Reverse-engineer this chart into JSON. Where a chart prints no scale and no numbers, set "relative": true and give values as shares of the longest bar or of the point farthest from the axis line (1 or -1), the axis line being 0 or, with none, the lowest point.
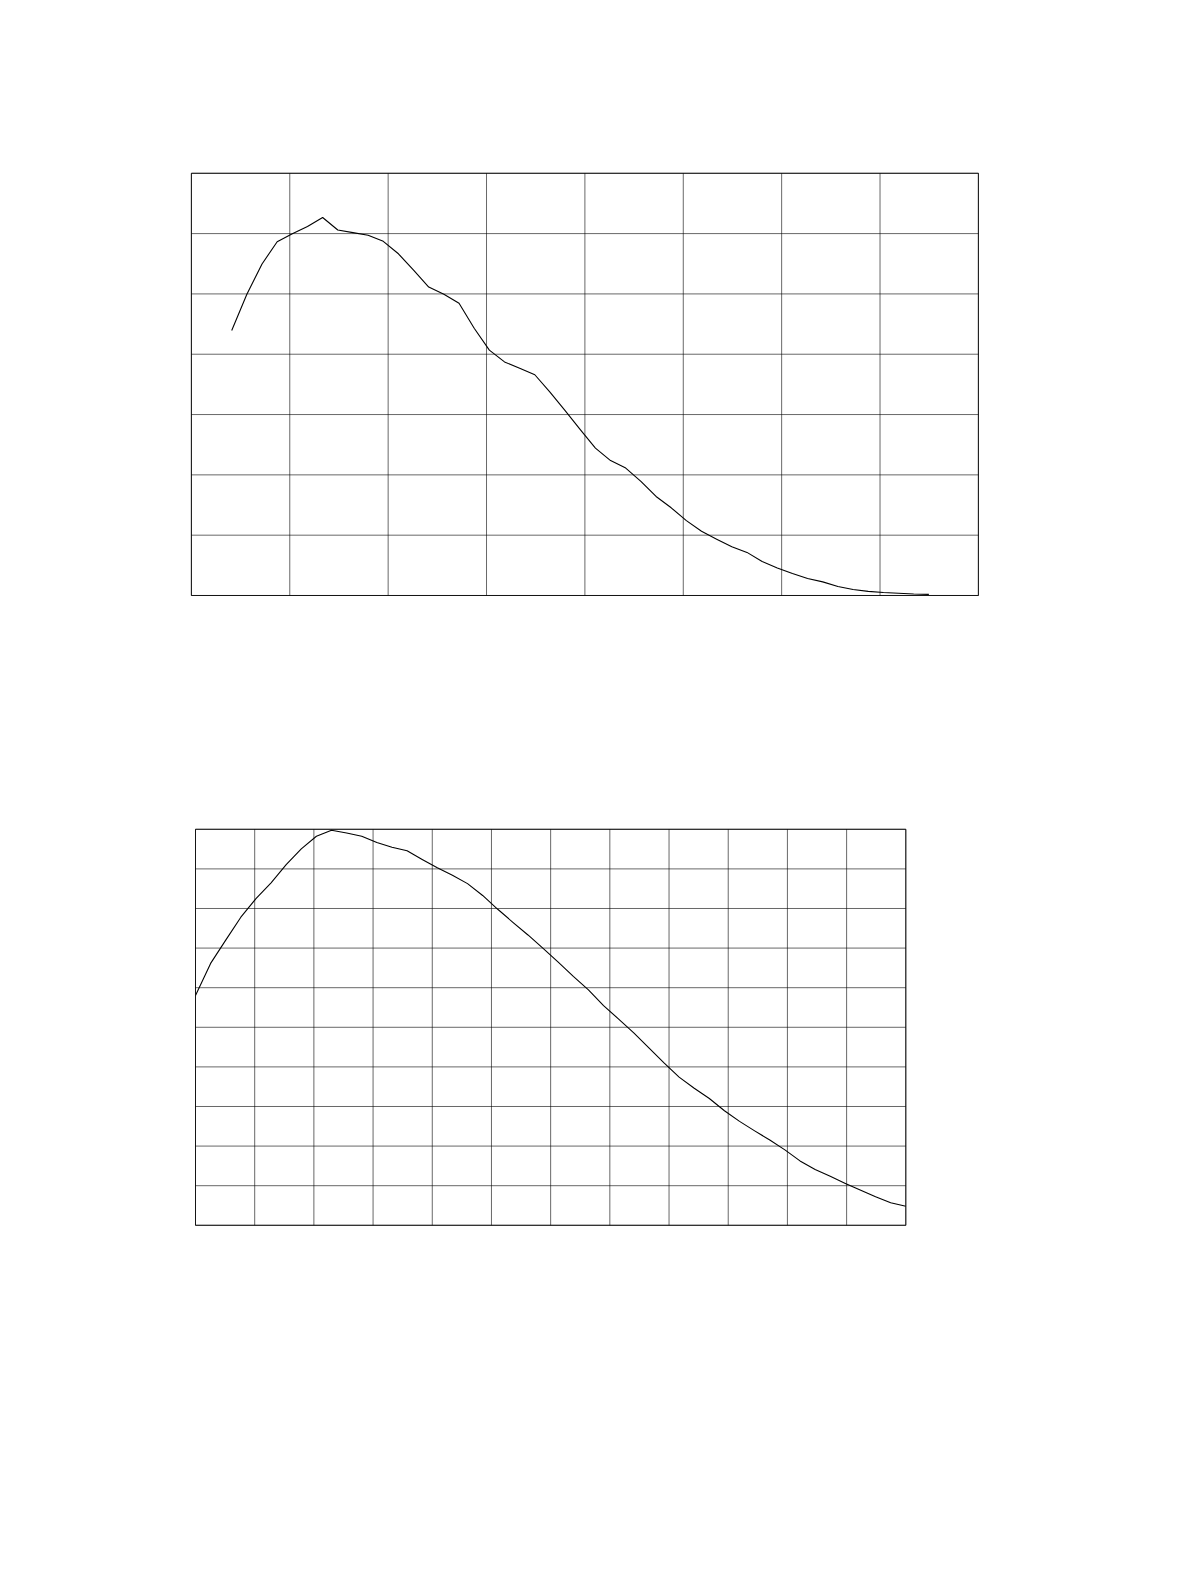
{
  "chart_data": [
    {
      "type": "line",
      "relative": true,
      "grid": true,
      "color": "#000000",
      "categories": [
        null,
        null,
        null,
        null,
        null,
        null,
        null,
        null,
        null,
        null,
        null,
        null,
        null,
        null,
        null,
        null,
        null,
        null,
        null,
        null,
        null,
        null,
        null,
        null,
        null,
        null,
        null,
        null,
        null,
        null,
        null,
        null,
        null,
        null,
        null,
        null,
        null,
        null,
        null,
        null,
        null,
        null,
        null,
        null,
        null,
        null,
        null
      ],
      "values": [
        0.701,
        0.797,
        0.877,
        0.936,
        0.957,
        0.976,
        1.0,
        0.967,
        0.96,
        0.953,
        0.937,
        0.904,
        0.861,
        0.816,
        0.797,
        0.773,
        0.707,
        0.649,
        0.618,
        0.601,
        0.584,
        0.538,
        0.489,
        0.439,
        0.39,
        0.357,
        0.337,
        0.302,
        0.262,
        0.232,
        0.198,
        0.17,
        0.149,
        0.129,
        0.114,
        0.09,
        0.073,
        0.058,
        0.045,
        0.036,
        0.024,
        0.016,
        0.011,
        0.008,
        0.006,
        0.004,
        0.003
      ]
    },
    {
      "type": "line",
      "relative": true,
      "grid": true,
      "color": "#000000",
      "categories": [
        null,
        null,
        null,
        null,
        null,
        null,
        null,
        null,
        null,
        null,
        null,
        null,
        null,
        null,
        null,
        null,
        null,
        null,
        null,
        null,
        null,
        null,
        null,
        null,
        null,
        null,
        null,
        null,
        null,
        null,
        null,
        null,
        null,
        null,
        null,
        null,
        null,
        null,
        null,
        null,
        null,
        null,
        null,
        null,
        null,
        null,
        null,
        null
      ],
      "values": [
        0.582,
        0.663,
        0.722,
        0.78,
        0.827,
        0.867,
        0.913,
        0.953,
        0.985,
        1.0,
        0.993,
        0.985,
        0.969,
        0.957,
        0.948,
        0.926,
        0.905,
        0.886,
        0.865,
        0.835,
        0.8,
        0.767,
        0.735,
        0.701,
        0.666,
        0.63,
        0.596,
        0.556,
        0.522,
        0.487,
        0.449,
        0.411,
        0.375,
        0.347,
        0.321,
        0.29,
        0.263,
        0.239,
        0.216,
        0.191,
        0.163,
        0.141,
        0.124,
        0.106,
        0.089,
        0.072,
        0.057,
        0.048
      ]
    }
  ]
}
